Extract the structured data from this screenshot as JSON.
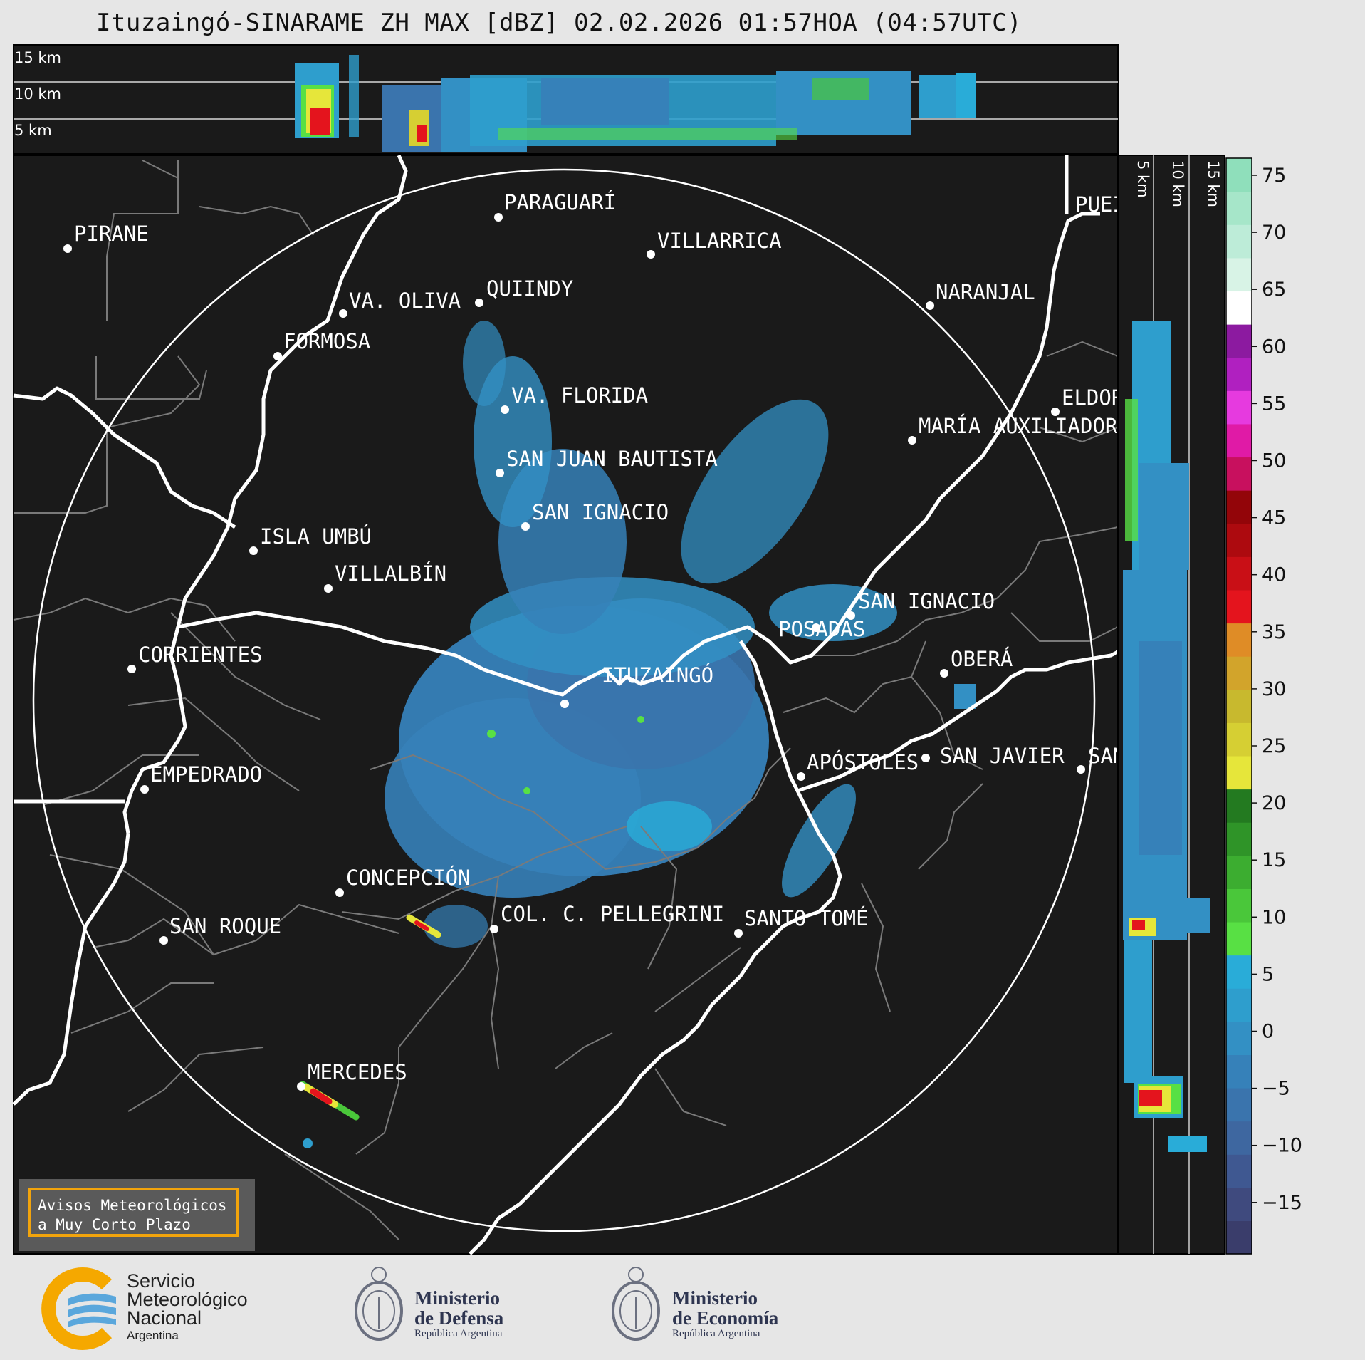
{
  "title": "Ituzaingó-SINARAME ZH MAX [dBZ] 02.02.2026 01:57HOA (04:57UTC)",
  "top_panel": {
    "altitude_labels": [
      "15 km",
      "10 km",
      "5 km"
    ]
  },
  "right_panel": {
    "altitude_labels": [
      "5 km",
      "10 km",
      "15 km"
    ]
  },
  "cities": [
    {
      "name": "PIRANE"
    },
    {
      "name": "PARAGUARÍ"
    },
    {
      "name": "VILLARRICA"
    },
    {
      "name": "VA. OLIVA"
    },
    {
      "name": "QUIINDY"
    },
    {
      "name": "NARANJAL"
    },
    {
      "name": "FORMOSA"
    },
    {
      "name": "VA. FLORIDA"
    },
    {
      "name": "ELDORADO"
    },
    {
      "name": "MARÍA AUXILIADORA"
    },
    {
      "name": "SAN JUAN BAUTISTA"
    },
    {
      "name": "SAN IGNACIO"
    },
    {
      "name": "ISLA UMBÚ"
    },
    {
      "name": "VILLALBÍN"
    },
    {
      "name": "SAN IGNACIO"
    },
    {
      "name": "POSADAS"
    },
    {
      "name": "CORRIENTES"
    },
    {
      "name": "ITUZAINGÓ"
    },
    {
      "name": "OBERÁ"
    },
    {
      "name": "EMPEDRADO"
    },
    {
      "name": "APÓSTOLES"
    },
    {
      "name": "SAN JAVIER"
    },
    {
      "name": "SAN"
    },
    {
      "name": "CONCEPCIÓN"
    },
    {
      "name": "COL. C. PELLEGRINI"
    },
    {
      "name": "SANTO TOMÉ"
    },
    {
      "name": "SAN ROQUE"
    },
    {
      "name": "MERCEDES"
    },
    {
      "name": "PUEI"
    }
  ],
  "colorbar": {
    "ticks": [
      "75",
      "70",
      "65",
      "60",
      "55",
      "50",
      "45",
      "40",
      "35",
      "30",
      "25",
      "20",
      "15",
      "10",
      "5",
      "0",
      "−5",
      "−10",
      "−15"
    ],
    "colors": [
      "#3a3d6b",
      "#3f4a7e",
      "#3f5891",
      "#3e67a0",
      "#3a74ad",
      "#3681b9",
      "#3390c4",
      "#2e9ecd",
      "#29acd8",
      "#58e044",
      "#4ac73a",
      "#3cad30",
      "#2f9428",
      "#237a20",
      "#e6e63a",
      "#d6cf33",
      "#c8b92e",
      "#d2a42b",
      "#df8c26",
      "#e4141d",
      "#c90f16",
      "#ad0a0f",
      "#930509",
      "#c8105e",
      "#e01aa6",
      "#e63adf",
      "#b020c0",
      "#8c1aa0",
      "#ffffff",
      "#d8f3e6",
      "#bdecd8",
      "#a6e6c9",
      "#8fdfbb"
    ]
  },
  "alert": {
    "line1": "Avisos Meteorológicos",
    "line2": "a Muy Corto Plazo"
  },
  "logos": {
    "smn": {
      "l1": "Servicio",
      "l2": "Meteorológico",
      "l3": "Nacional",
      "l4": "Argentina"
    },
    "defensa": {
      "l1": "Ministerio",
      "l2": "de Defensa",
      "l3": "República Argentina"
    },
    "economia": {
      "l1": "Ministerio",
      "l2": "de Economía",
      "l3": "República Argentina"
    }
  }
}
